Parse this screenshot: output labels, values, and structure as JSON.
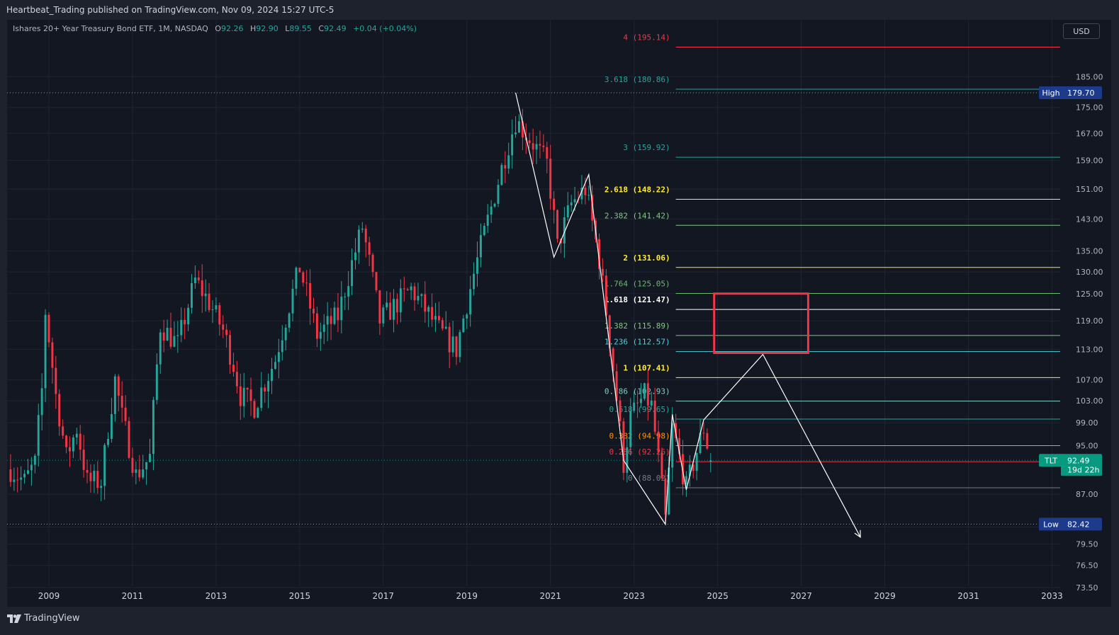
{
  "header": {
    "attribution": "Heartbeat_Trading published on TradingView.com, Nov 09, 2024 15:27 UTC-5"
  },
  "legend": {
    "symbol": "Ishares 20+ Year Treasury Bond ETF, 1M, NASDAQ",
    "o_label": "O",
    "o_value": "92.26",
    "h_label": "H",
    "h_value": "92.90",
    "l_label": "L",
    "l_value": "89.55",
    "c_label": "C",
    "c_value": "92.49",
    "change": "+0.04 (+0.04%)"
  },
  "currency_button": "USD",
  "footer": {
    "brand": "TradingView"
  },
  "colors": {
    "up": "#26a69a",
    "down": "#f23645",
    "background": "#131722",
    "frame": "#1e222d",
    "text": "#b2b5be",
    "annotation": "#ffffff",
    "target_box": "#f23645"
  },
  "chart_data": {
    "type": "candlestick",
    "title": "Ishares 20+ Year Treasury Bond ETF, 1M, NASDAQ",
    "symbol": "TLT",
    "timeframe": "1M",
    "x_axis_type": "date",
    "xlim": [
      "2008-01-01",
      "2034-06-01"
    ],
    "x_ticks": [
      "2009",
      "2011",
      "2013",
      "2015",
      "2017",
      "2019",
      "2021",
      "2023",
      "2025",
      "2027",
      "2029",
      "2031",
      "2033"
    ],
    "y_scale": "log",
    "ylim": [
      71,
      205
    ],
    "y_ticks": [
      "185.00",
      "175.00",
      "167.00",
      "159.00",
      "151.00",
      "143.00",
      "135.00",
      "130.00",
      "125.00",
      "119.00",
      "113.00",
      "107.00",
      "103.00",
      "99.00",
      "95.00",
      "87.00",
      "82.00",
      "79.50",
      "76.50",
      "73.50"
    ],
    "grid": true,
    "last_price": {
      "label": "TLT",
      "value": "92.49",
      "countdown": "19d 22h"
    },
    "high_marker": {
      "label": "High",
      "value": "179.70"
    },
    "low_marker": {
      "label": "Low",
      "value": "82.42"
    },
    "candles_keyframes": [
      [
        "2008-02",
        91
      ],
      [
        "2008-06",
        89
      ],
      [
        "2008-09",
        92
      ],
      [
        "2008-11",
        105
      ],
      [
        "2008-12",
        121
      ],
      [
        "2009-03",
        104
      ],
      [
        "2009-06",
        93
      ],
      [
        "2009-09",
        98
      ],
      [
        "2009-12",
        89
      ],
      [
        "2010-04",
        89
      ],
      [
        "2010-08",
        107
      ],
      [
        "2010-10",
        100
      ],
      [
        "2011-02",
        90
      ],
      [
        "2011-06",
        93
      ],
      [
        "2011-09",
        118
      ],
      [
        "2012-02",
        114
      ],
      [
        "2012-07",
        128
      ],
      [
        "2012-11",
        123
      ],
      [
        "2013-03",
        117
      ],
      [
        "2013-06",
        110
      ],
      [
        "2013-08",
        104
      ],
      [
        "2013-12",
        102
      ],
      [
        "2014-06",
        111
      ],
      [
        "2015-01",
        131
      ],
      [
        "2015-06",
        116
      ],
      [
        "2015-12",
        120
      ],
      [
        "2016-07",
        141
      ],
      [
        "2016-12",
        119
      ],
      [
        "2017-09",
        126
      ],
      [
        "2018-05",
        117
      ],
      [
        "2018-10",
        113
      ],
      [
        "2019-08",
        146
      ],
      [
        "2020-03",
        171
      ],
      [
        "2020-08",
        164
      ],
      [
        "2020-12",
        158
      ],
      [
        "2021-03",
        136
      ],
      [
        "2021-07",
        147
      ],
      [
        "2021-11",
        151
      ],
      [
        "2022-03",
        133
      ],
      [
        "2022-06",
        115
      ],
      [
        "2022-10",
        92
      ],
      [
        "2022-12",
        100
      ],
      [
        "2023-04",
        104
      ],
      [
        "2023-06",
        102
      ],
      [
        "2023-10",
        83
      ],
      [
        "2023-12",
        98
      ],
      [
        "2024-04",
        88
      ],
      [
        "2024-09",
        98
      ],
      [
        "2024-11",
        92.49
      ]
    ],
    "fib_levels": [
      {
        "label": "4 (195.14)",
        "value": 195.14,
        "color": "#f23645"
      },
      {
        "label": "3.618 (180.86)",
        "value": 180.86,
        "color": "#26a69a"
      },
      {
        "label": "3 (159.92)",
        "value": 159.92,
        "color": "#26a69a"
      },
      {
        "label": "2.618 (148.22)",
        "value": 148.22,
        "color": "#ffeb3b",
        "bold": true
      },
      {
        "label": "2.382 (141.42)",
        "value": 141.42,
        "color": "#81c784"
      },
      {
        "label": "2 (131.06)",
        "value": 131.06,
        "color": "#ffeb3b",
        "bold": true
      },
      {
        "label": "1.764 (125.05)",
        "value": 125.05,
        "color": "#66bb6a"
      },
      {
        "label": "1.618 (121.47)",
        "value": 121.47,
        "color": "#ffffff",
        "bold": true
      },
      {
        "label": "1.382 (115.89)",
        "value": 115.89,
        "color": "#81c784"
      },
      {
        "label": "1.236 (112.57)",
        "value": 112.57,
        "color": "#4dd0e1"
      },
      {
        "label": "1 (107.41)",
        "value": 107.41,
        "color": "#ffeb3b",
        "bold": true
      },
      {
        "label": "0.786 (102.93)",
        "value": 102.93,
        "color": "#80cbc4"
      },
      {
        "label": "0.618 (99.65)",
        "value": 99.65,
        "color": "#26a69a"
      },
      {
        "label": "0.382 (94.98)",
        "value": 94.98,
        "color": "#ff9800"
      },
      {
        "label": "0.236 (92.26)",
        "value": 92.26,
        "color": "#f23645"
      },
      {
        "label": "0 (88.02)",
        "value": 88.02,
        "color": "#787b86"
      }
    ],
    "wave_path": [
      [
        "2020-03",
        179.7
      ],
      [
        "2021-02",
        133.5
      ],
      [
        "2021-12",
        155.0
      ],
      [
        "2022-10",
        92.5
      ],
      [
        "2023-10",
        82.4
      ],
      [
        "2023-12",
        100.5
      ],
      [
        "2024-04",
        87.7
      ],
      [
        "2024-09",
        99.5
      ],
      [
        "2026-02",
        112.0
      ],
      [
        "2028-06",
        80.5
      ]
    ],
    "target_box": {
      "x_start": "2024-12",
      "x_end": "2027-03",
      "y_top": 125.0,
      "y_bottom": 112.3
    }
  }
}
